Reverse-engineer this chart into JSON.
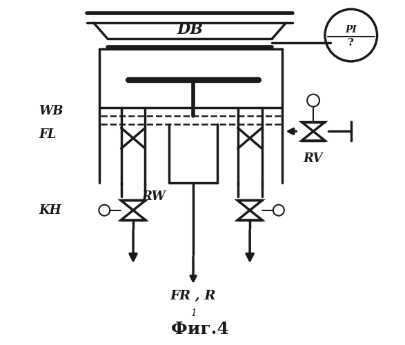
{
  "bg_color": "#ffffff",
  "line_color": "#1a1a1a",
  "title": "Фиг.4",
  "DB_label": "DB",
  "WB_label": "WB",
  "FL_label": "FL",
  "KH_label": "KH",
  "RW_label": "RW",
  "RV_label": "RV",
  "PI_top": "PI",
  "PI_bot": "?",
  "FR_R_label": "FR , R",
  "subscript_1": "1"
}
